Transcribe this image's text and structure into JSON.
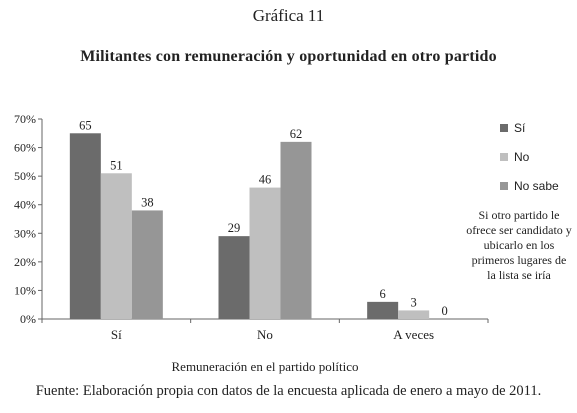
{
  "figure_label": "Gráfica 11",
  "source": "Fuente: Elaboración propia con datos de la encuesta aplicada de enero a mayo de 2011.",
  "note": "Si otro partido le ofrece ser candidato y ubicarlo en los primeros lugares de la lista se iría",
  "chart_data": {
    "type": "bar",
    "title": "Militantes con remuneración y oportunidad en otro partido",
    "xlabel": "Remuneración en el partido político",
    "ylabel": "",
    "categories": [
      "Sí",
      "No",
      "A veces"
    ],
    "series": [
      {
        "name": "Sí",
        "values": [
          65,
          29,
          6
        ],
        "color": "#6b6b6b"
      },
      {
        "name": "No",
        "values": [
          51,
          46,
          3
        ],
        "color": "#bfbfbf"
      },
      {
        "name": "No sabe",
        "values": [
          38,
          62,
          0
        ],
        "color": "#969696"
      }
    ],
    "ylim": [
      0,
      70
    ],
    "yticks": [
      0,
      10,
      20,
      30,
      40,
      50,
      60,
      70
    ],
    "ytick_suffix": "%",
    "grid": false,
    "legend_position": "right",
    "data_labels": true
  }
}
